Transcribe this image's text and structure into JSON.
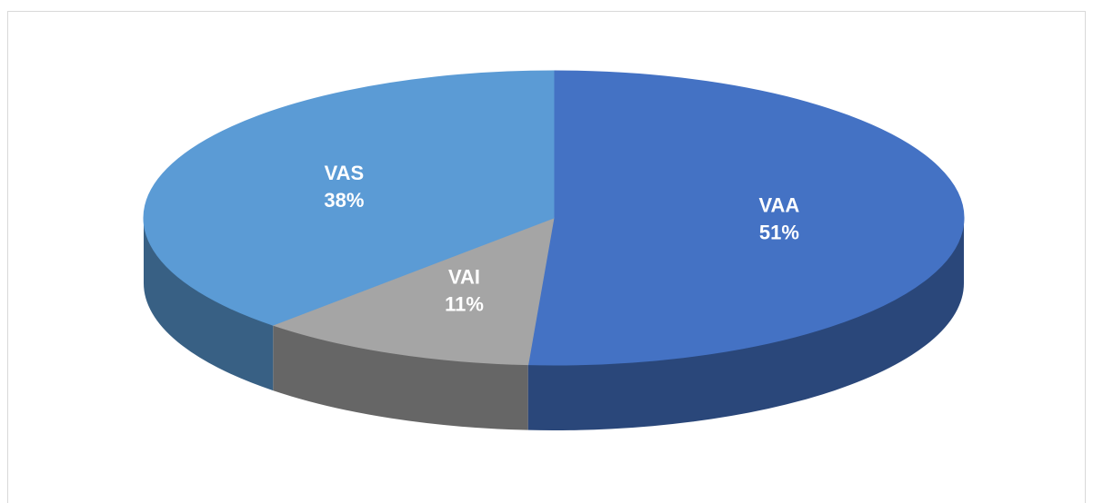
{
  "chart_data": {
    "type": "pie",
    "categories": [
      "VAA",
      "VAI",
      "VAS"
    ],
    "values": [
      51,
      11,
      38
    ],
    "value_labels": [
      "51%",
      "11%",
      "38%"
    ],
    "colors": [
      "#4472c4",
      "#a5a5a5",
      "#5b9bd5"
    ]
  }
}
